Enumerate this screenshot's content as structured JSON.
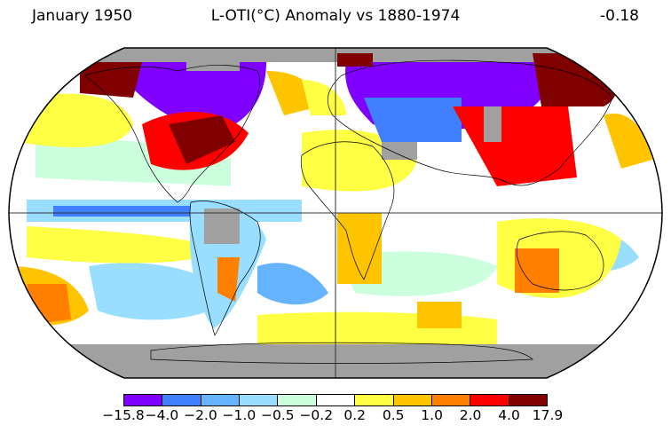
{
  "header": {
    "date": "January 1950",
    "title": "L-OTI(°C) Anomaly vs 1880-1974",
    "mean": "-0.18"
  },
  "colorbar": {
    "colors": [
      "#8000ff",
      "#4080ff",
      "#66b3ff",
      "#99ddff",
      "#ccffdd",
      "#ffffff",
      "#ffff44",
      "#ffc400",
      "#ff8000",
      "#ff0000",
      "#800000"
    ],
    "labels": [
      "−15.8",
      "−4.0",
      "−2.0",
      "−1.0",
      "−0.5",
      "−0.2",
      "0.2",
      "0.5",
      "1.0",
      "2.0",
      "4.0",
      "17.9"
    ]
  },
  "map": {
    "missing_color": "#a0a0a0",
    "anomaly_regions": [
      {
        "name": "north-canada-cold",
        "level": -10
      },
      {
        "name": "eastern-north-america-warm",
        "level": 3
      },
      {
        "name": "alaska-warm",
        "level": 3
      },
      {
        "name": "siberia-cold",
        "level": -10
      },
      {
        "name": "east-asia-warm",
        "level": 3
      },
      {
        "name": "australia-warm",
        "level": 1.5
      },
      {
        "name": "south-america-cool",
        "level": -0.7
      },
      {
        "name": "antarctica-missing",
        "level": null
      }
    ]
  }
}
